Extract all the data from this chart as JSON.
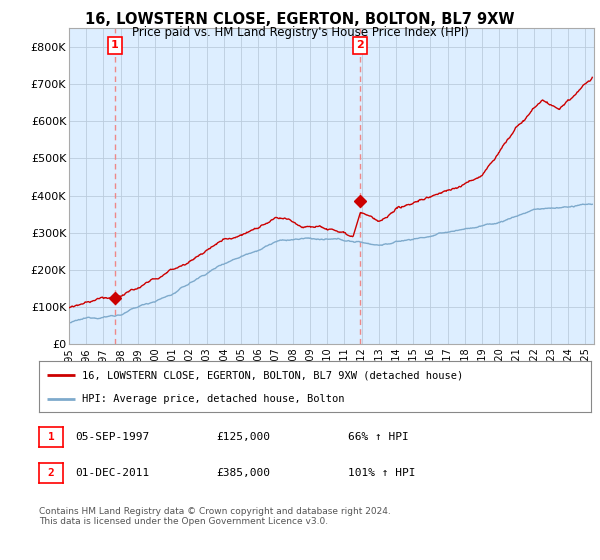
{
  "title": "16, LOWSTERN CLOSE, EGERTON, BOLTON, BL7 9XW",
  "subtitle": "Price paid vs. HM Land Registry's House Price Index (HPI)",
  "xlim_start": 1995.0,
  "xlim_end": 2025.5,
  "ylim_bottom": 0,
  "ylim_top": 850000,
  "yticks": [
    0,
    100000,
    200000,
    300000,
    400000,
    500000,
    600000,
    700000,
    800000
  ],
  "ytick_labels": [
    "£0",
    "£100K",
    "£200K",
    "£300K",
    "£400K",
    "£500K",
    "£600K",
    "£700K",
    "£800K"
  ],
  "transaction1": {
    "year": 1997.67,
    "price": 125000,
    "label": "1"
  },
  "transaction2": {
    "year": 2011.92,
    "price": 385000,
    "label": "2"
  },
  "legend_line1": "16, LOWSTERN CLOSE, EGERTON, BOLTON, BL7 9XW (detached house)",
  "legend_line2": "HPI: Average price, detached house, Bolton",
  "hpi_color": "#7eaacc",
  "price_color": "#cc0000",
  "dashed_color": "#ee8888",
  "bg_color": "#ffffff",
  "plot_bg_color": "#ddeeff",
  "grid_color": "#bbccdd",
  "footer": "Contains HM Land Registry data © Crown copyright and database right 2024.\nThis data is licensed under the Open Government Licence v3.0."
}
